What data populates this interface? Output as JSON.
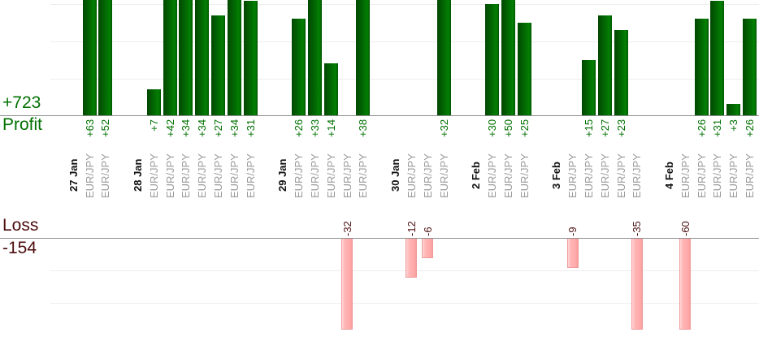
{
  "chart_data": {
    "type": "bar",
    "title": "",
    "xlabel": "",
    "ylabel": "",
    "legend": "none",
    "grid": true,
    "panels": {
      "profit": {
        "axis_label": "Profit",
        "total": "+723",
        "bar_color": "#026002",
        "text_color": "#007000",
        "gridline_step": 10
      },
      "loss": {
        "axis_label": "Loss",
        "total": "-154",
        "bar_color": "#ffb5b5",
        "text_color": "#4c1212",
        "gridline_step": 10
      }
    },
    "groups": [
      {
        "date": "27 Jan",
        "trades": [
          {
            "symbol": "EUR/JPY",
            "value": 63,
            "label": "+63"
          },
          {
            "symbol": "EUR/JPY",
            "value": 52,
            "label": "+52"
          }
        ]
      },
      {
        "date": "28 Jan",
        "trades": [
          {
            "symbol": "EUR/JPY",
            "value": 7,
            "label": "+7"
          },
          {
            "symbol": "EUR/JPY",
            "value": 42,
            "label": "+42"
          },
          {
            "symbol": "EUR/JPY",
            "value": 34,
            "label": "+34"
          },
          {
            "symbol": "EUR/JPY",
            "value": 34,
            "label": "+34"
          },
          {
            "symbol": "EUR/JPY",
            "value": 27,
            "label": "+27"
          },
          {
            "symbol": "EUR/JPY",
            "value": 34,
            "label": "+34"
          },
          {
            "symbol": "EUR/JPY",
            "value": 31,
            "label": "+31"
          }
        ]
      },
      {
        "date": "29 Jan",
        "trades": [
          {
            "symbol": "EUR/JPY",
            "value": 26,
            "label": "+26"
          },
          {
            "symbol": "EUR/JPY",
            "value": 33,
            "label": "+33"
          },
          {
            "symbol": "EUR/JPY",
            "value": 14,
            "label": "+14"
          },
          {
            "symbol": "EUR/JPY",
            "value": -32,
            "label": "-32"
          },
          {
            "symbol": "EUR/JPY",
            "value": 38,
            "label": "+38"
          }
        ]
      },
      {
        "date": "30 Jan",
        "trades": [
          {
            "symbol": "EUR/JPY",
            "value": -12,
            "label": "-12"
          },
          {
            "symbol": "EUR/JPY",
            "value": -6,
            "label": "-6"
          },
          {
            "symbol": "EUR/JPY",
            "value": 32,
            "label": "+32"
          }
        ]
      },
      {
        "date": "2 Feb",
        "trades": [
          {
            "symbol": "EUR/JPY",
            "value": 30,
            "label": "+30"
          },
          {
            "symbol": "EUR/JPY",
            "value": 50,
            "label": "+50"
          },
          {
            "symbol": "EUR/JPY",
            "value": 25,
            "label": "+25"
          }
        ]
      },
      {
        "date": "3 Feb",
        "trades": [
          {
            "symbol": "EUR/JPY",
            "value": -9,
            "label": "-9"
          },
          {
            "symbol": "EUR/JPY",
            "value": 15,
            "label": "+15"
          },
          {
            "symbol": "EUR/JPY",
            "value": 27,
            "label": "+27"
          },
          {
            "symbol": "EUR/JPY",
            "value": 23,
            "label": "+23"
          },
          {
            "symbol": "EUR/JPY",
            "value": -35,
            "label": "-35"
          }
        ]
      },
      {
        "date": "4 Feb",
        "trades": [
          {
            "symbol": "EUR/JPY",
            "value": -60,
            "label": "-60"
          },
          {
            "symbol": "EUR/JPY",
            "value": 26,
            "label": "+26"
          },
          {
            "symbol": "EUR/JPY",
            "value": 31,
            "label": "+31"
          },
          {
            "symbol": "EUR/JPY",
            "value": 3,
            "label": "+3"
          },
          {
            "symbol": "EUR/JPY",
            "value": 26,
            "label": "+26"
          }
        ]
      }
    ]
  }
}
